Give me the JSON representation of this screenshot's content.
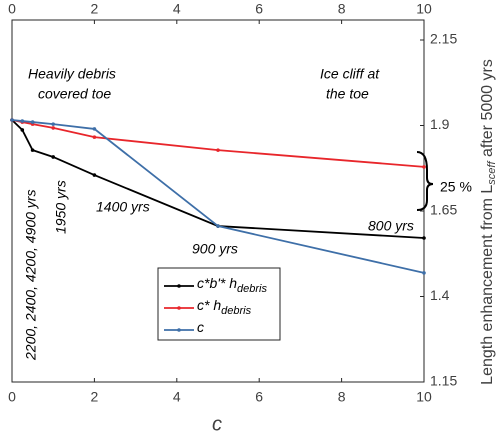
{
  "chart_data": {
    "type": "line",
    "x_label": "c",
    "y2_label": "Length enhancement from L",
    "y2_label_sub": "sceff",
    "y2_label_tail": " after 5000 yrs",
    "x": [
      0,
      0.25,
      0.5,
      1,
      2,
      5,
      10
    ],
    "xlim": [
      0,
      10
    ],
    "xticks": [
      0,
      2,
      4,
      6,
      8,
      10
    ],
    "y2lim": [
      1.15,
      2.15
    ],
    "y2ticks": [
      1.15,
      1.4,
      1.65,
      1.9,
      2.15
    ],
    "series": [
      {
        "name": "c*b'* h",
        "name_sub": "debris",
        "color": "#000000",
        "axis": "y2",
        "values": [
          1.916,
          1.887,
          1.828,
          1.808,
          1.755,
          1.606,
          1.571
        ]
      },
      {
        "name": "c* h",
        "name_sub": "debris",
        "color": "#e8262b",
        "axis": "y2",
        "values": [
          1.916,
          1.91,
          1.904,
          1.893,
          1.866,
          1.828,
          1.779
        ]
      },
      {
        "name": "c",
        "color": "#3e6fa8",
        "axis": "y2",
        "values": [
          1.916,
          1.913,
          1.91,
          1.904,
          1.89,
          1.606,
          1.469
        ]
      }
    ],
    "annotations": [
      "Heavily debris",
      "covered toe",
      "Ice cliff at",
      "the toe",
      "1400 yrs",
      "900 yrs",
      "800 yrs",
      "1950 yrs",
      "2200, 2400, 4200, 4900 yrs",
      "25 %"
    ]
  }
}
